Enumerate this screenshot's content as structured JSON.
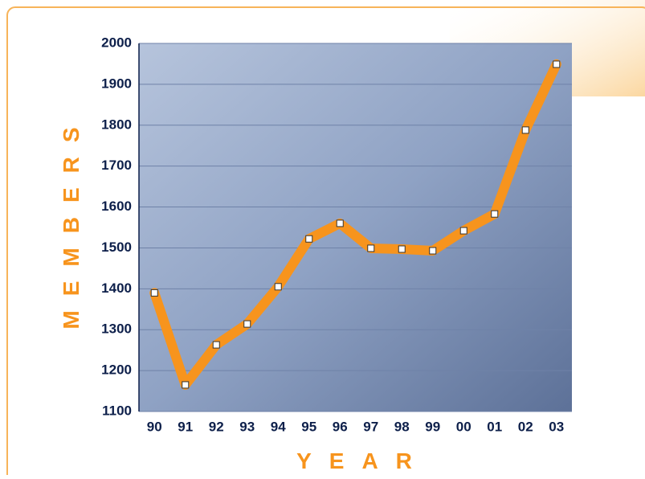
{
  "chart_data": {
    "type": "line",
    "x_label": "YEAR",
    "y_label": "MEMBERS",
    "categories": [
      "90",
      "91",
      "92",
      "93",
      "94",
      "95",
      "96",
      "97",
      "98",
      "99",
      "00",
      "01",
      "02",
      "03"
    ],
    "values": [
      1390,
      1165,
      1263,
      1314,
      1405,
      1522,
      1560,
      1499,
      1497,
      1493,
      1542,
      1583,
      1788,
      1949
    ],
    "color": "#f7941d",
    "ylim": [
      1100,
      2000
    ],
    "yticks": [
      1100,
      1200,
      1300,
      1400,
      1500,
      1600,
      1700,
      1800,
      1900,
      2000
    ],
    "grid": true
  }
}
